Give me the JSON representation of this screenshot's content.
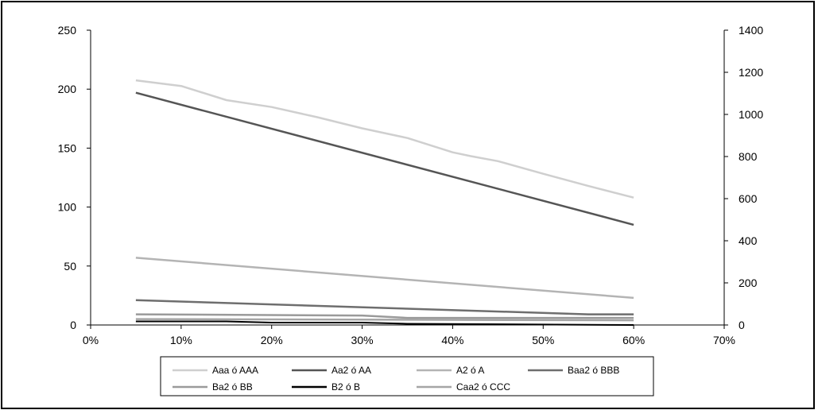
{
  "chart_data": {
    "type": "line",
    "title": "",
    "xlabel": "",
    "ylabel": "",
    "xlim": [
      0,
      70
    ],
    "x_ticks": [
      "0%",
      "10%",
      "20%",
      "30%",
      "40%",
      "50%",
      "60%",
      "70%"
    ],
    "ylim_left": [
      0,
      250
    ],
    "y_ticks_left": [
      "0",
      "50",
      "100",
      "150",
      "200",
      "250"
    ],
    "ylim_right": [
      0,
      1400
    ],
    "y_ticks_right": [
      "0",
      "200",
      "400",
      "600",
      "800",
      "1000",
      "1200",
      "1400"
    ],
    "grid": false,
    "legend_position": "bottom",
    "series": [
      {
        "name": "Aaa ó AAA",
        "axis": "right",
        "color": "#cfcfcf",
        "x": [
          5,
          10,
          15,
          20,
          25,
          30,
          35,
          40,
          42,
          45,
          50,
          55,
          60
        ],
        "y": [
          1162,
          1135,
          1068,
          1035,
          987,
          934,
          888,
          820,
          802,
          778,
          718,
          660,
          605
        ]
      },
      {
        "name": "Aa2 ó AA",
        "axis": "left",
        "color": "#555555",
        "x": [
          5,
          60
        ],
        "y": [
          197,
          85
        ]
      },
      {
        "name": "A2 ó A",
        "axis": "left",
        "color": "#b4b4b4",
        "x": [
          5,
          60
        ],
        "y": [
          57,
          23
        ]
      },
      {
        "name": "Baa2 ó BBB",
        "axis": "left",
        "color": "#6e6e6e",
        "x": [
          5,
          55,
          60
        ],
        "y": [
          21,
          9,
          9
        ]
      },
      {
        "name": "Ba2 ó BB",
        "axis": "left",
        "color": "#9a9a9a",
        "x": [
          5,
          30,
          35,
          60
        ],
        "y": [
          9,
          8,
          6,
          6
        ]
      },
      {
        "name": "B2 ó B",
        "axis": "left",
        "color": "#000000",
        "x": [
          5,
          15,
          20,
          30,
          35,
          60
        ],
        "y": [
          3,
          3,
          2,
          2,
          1,
          0
        ]
      },
      {
        "name": "Caa2 ó CCC",
        "axis": "left",
        "color": "#a5a5a5",
        "x": [
          5,
          60
        ],
        "y": [
          5,
          4
        ]
      }
    ]
  }
}
